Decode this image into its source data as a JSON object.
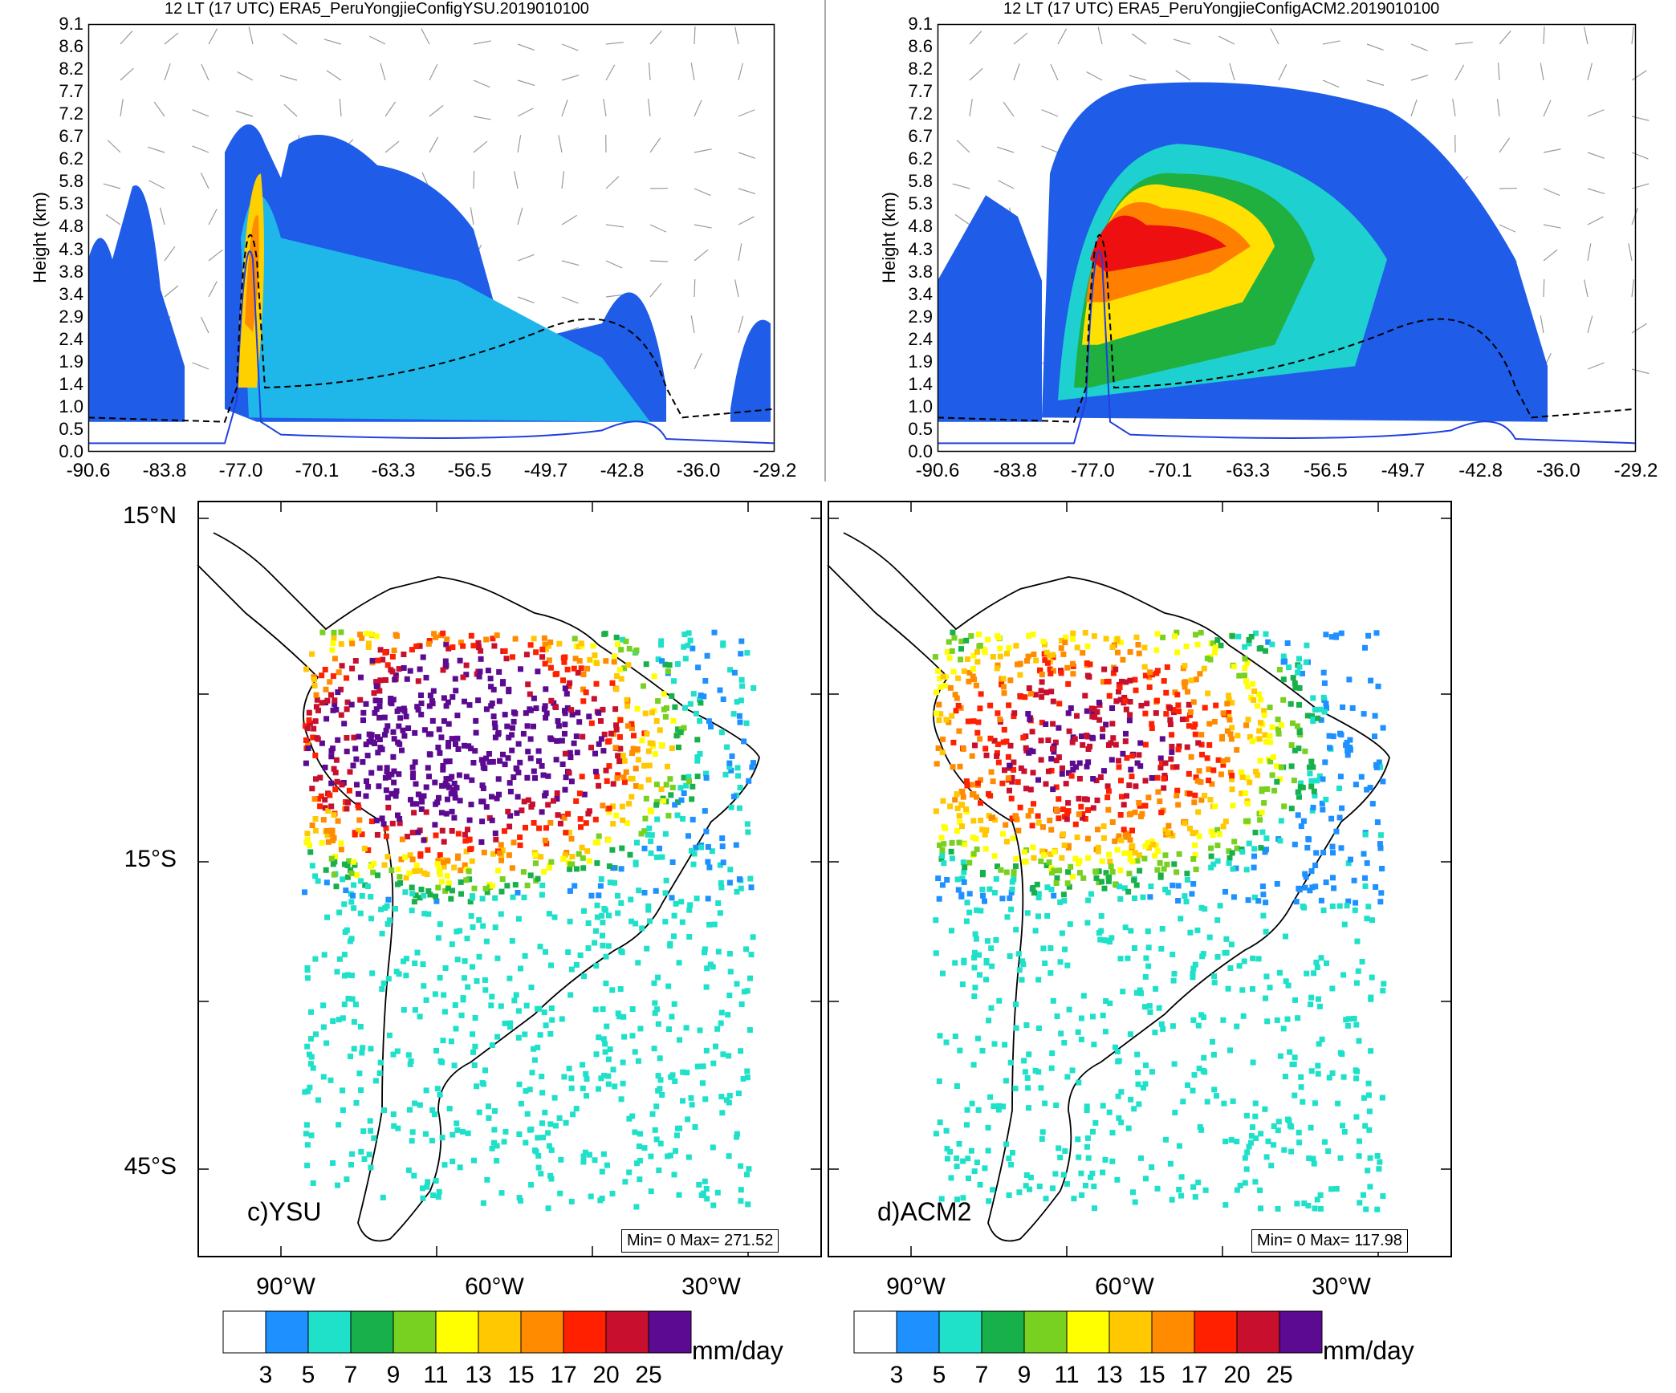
{
  "cross_sections": [
    {
      "title": "12 LT (17 UTC) ERA5_PeruYongjieConfigYSU.2019010100",
      "ylabel": "Height (km)",
      "y_ticks": [
        "9.1",
        "8.6",
        "8.2",
        "7.7",
        "7.2",
        "6.7",
        "6.2",
        "5.8",
        "5.3",
        "4.8",
        "4.3",
        "3.8",
        "3.4",
        "2.9",
        "2.4",
        "1.9",
        "1.4",
        "1.0",
        "0.5",
        "0.0"
      ],
      "x_ticks": [
        "-90.6",
        "-83.8",
        "-77.0",
        "-70.1",
        "-63.3",
        "-56.5",
        "-49.7",
        "-42.8",
        "-36.0",
        "-29.2"
      ]
    },
    {
      "title": "12 LT (17 UTC) ERA5_PeruYongjieConfigACM2.2019010100",
      "ylabel": "Height (km)",
      "y_ticks": [
        "9.1",
        "8.6",
        "8.2",
        "7.7",
        "7.2",
        "6.7",
        "6.2",
        "5.8",
        "5.3",
        "4.8",
        "4.3",
        "3.8",
        "3.4",
        "2.9",
        "2.4",
        "1.9",
        "1.4",
        "1.0",
        "0.5",
        "0.0"
      ],
      "x_ticks": [
        "-90.6",
        "-83.8",
        "-77.0",
        "-70.1",
        "-63.3",
        "-56.5",
        "-49.7",
        "-42.8",
        "-36.0",
        "-29.2"
      ]
    }
  ],
  "maps": [
    {
      "label": "c)YSU",
      "minmax": "Min= 0 Max= 271.52"
    },
    {
      "label": "d)ACM2",
      "minmax": "Min= 0 Max= 117.98"
    }
  ],
  "map_lat_labels": [
    "15°N",
    "15°S",
    "45°S"
  ],
  "map_lon_labels": [
    "90°W",
    "60°W",
    "30°W"
  ],
  "colorbar": {
    "unit": "mm/day",
    "labels": [
      "3",
      "5",
      "7",
      "9",
      "11",
      "13",
      "15",
      "17",
      "20",
      "25"
    ],
    "colors": [
      "#ffffff",
      "#1e90ff",
      "#1fe0c8",
      "#18b04a",
      "#78d020",
      "#ffff00",
      "#ffc800",
      "#ff8c00",
      "#ff2000",
      "#c8102e",
      "#5b0a91"
    ]
  }
}
